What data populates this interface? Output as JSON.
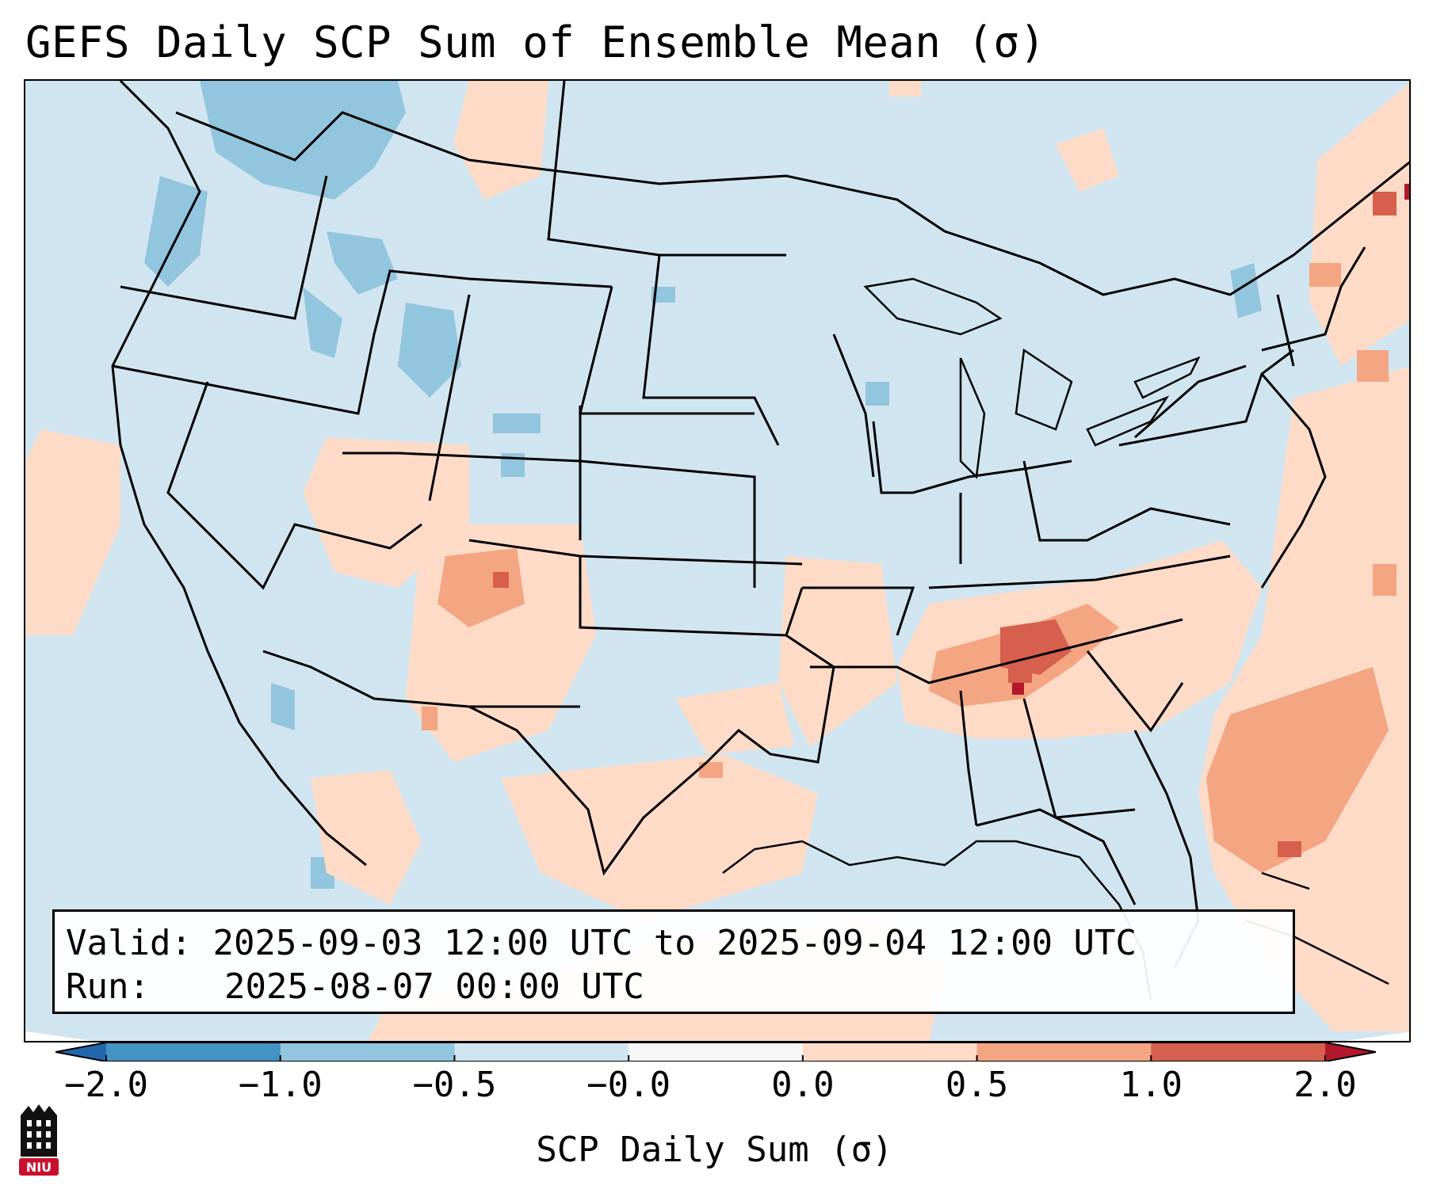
{
  "title": "GEFS Daily SCP Sum of Ensemble Mean (σ)",
  "info_box": {
    "valid_label": "Valid:",
    "valid_value": "2025-09-03 12:00 UTC to 2025-09-04 12:00 UTC",
    "run_label": "Run:",
    "run_value": "2025-08-07 00:00 UTC"
  },
  "colorbar": {
    "title": "SCP Daily Sum (σ)",
    "ticks": [
      "−2.0",
      "−1.0",
      "−0.5",
      "−0.0",
      "0.0",
      "0.5",
      "1.0",
      "2.0"
    ],
    "segment_colors": [
      "#4393c3",
      "#92c5de",
      "#d1e5f0",
      "#f7f7f7",
      "#fddbc7",
      "#f4a582",
      "#d6604d"
    ],
    "extend_low_color": "#2166ac",
    "extend_high_color": "#b2182b"
  },
  "logo": {
    "text": "NIU",
    "color": "#c8102e"
  },
  "colors": {
    "background_field": "#d1e5f0",
    "positive_field": "#fddbc7",
    "border_lines": "#000000"
  }
}
